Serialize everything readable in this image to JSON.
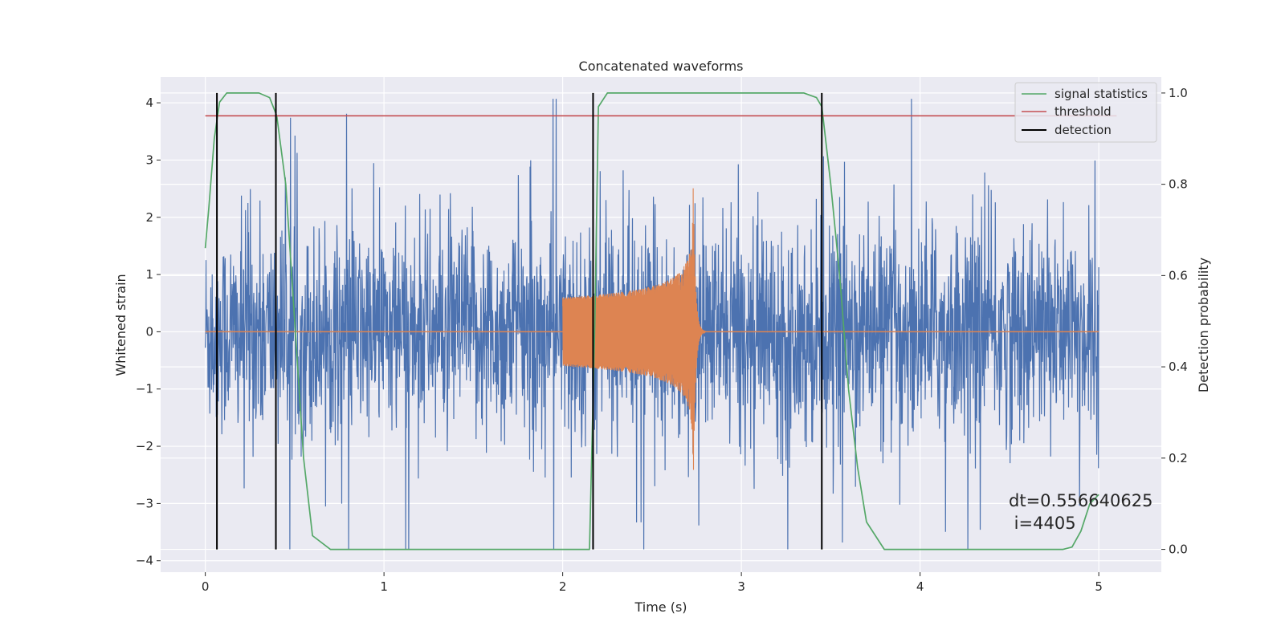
{
  "chart_data": {
    "type": "line",
    "title": "Concatenated waveforms",
    "xlabel": "Time (s)",
    "ylabel": "Whitened strain",
    "y2label": "Detection probability",
    "xlim": [
      -0.25,
      5.35
    ],
    "ylim": [
      -4.2,
      4.45
    ],
    "y2lim": [
      -0.05,
      1.035
    ],
    "x_ticks": [
      0,
      1,
      2,
      3,
      4,
      5
    ],
    "y_ticks": [
      -4,
      -3,
      -2,
      -1,
      0,
      1,
      2,
      3,
      4
    ],
    "y2_ticks": [
      0.0,
      0.2,
      0.4,
      0.6,
      0.8,
      1.0
    ],
    "x_tick_labels": [
      "0",
      "1",
      "2",
      "3",
      "4",
      "5"
    ],
    "y_tick_labels": [
      "−4",
      "−3",
      "−2",
      "−1",
      "0",
      "1",
      "2",
      "3",
      "4"
    ],
    "y2_tick_labels": [
      "0.0",
      "0.2",
      "0.4",
      "0.6",
      "0.8",
      "1.0"
    ],
    "grid": true,
    "legend_position": "top-right",
    "colors": {
      "strain": "#4c72b0",
      "waveform": "#dd8452",
      "signal_statistics": "#55a868",
      "threshold": "#c44e52",
      "detection": "#000000",
      "background": "#eaeaf2",
      "grid": "#ffffff"
    },
    "series": [
      {
        "name": "strain",
        "axis": "left",
        "description_envelope": {
          "x_range": [
            0,
            5
          ],
          "dense_band": [
            -0.9,
            0.9
          ],
          "spike_max": 4.07,
          "spike_min": -3.8
        }
      },
      {
        "name": "waveform",
        "axis": "left",
        "chirp": {
          "start": 2.0,
          "merger": 2.73,
          "ringdown_end": 2.8,
          "amp_start": 0.6,
          "amp_peak": 2.85,
          "amp_min": -2.2
        }
      },
      {
        "name": "signal statistics",
        "axis": "right",
        "x": [
          0.0,
          0.02,
          0.05,
          0.08,
          0.12,
          0.2,
          0.3,
          0.36,
          0.4,
          0.45,
          0.5,
          0.55,
          0.6,
          0.7,
          1.0,
          1.5,
          2.0,
          2.1,
          2.15,
          2.18,
          2.2,
          2.25,
          2.3,
          2.5,
          3.0,
          3.35,
          3.42,
          3.45,
          3.5,
          3.55,
          3.6,
          3.65,
          3.7,
          3.8,
          4.0,
          4.5,
          4.8,
          4.85,
          4.9,
          4.95,
          5.0
        ],
        "y": [
          0.66,
          0.75,
          0.9,
          0.98,
          1.0,
          1.0,
          1.0,
          0.99,
          0.95,
          0.8,
          0.5,
          0.2,
          0.03,
          0.0,
          0.0,
          0.0,
          0.0,
          0.0,
          0.0,
          0.5,
          0.97,
          1.0,
          1.0,
          1.0,
          1.0,
          1.0,
          0.99,
          0.97,
          0.8,
          0.6,
          0.35,
          0.18,
          0.06,
          0.0,
          0.0,
          0.0,
          0.0,
          0.005,
          0.04,
          0.1,
          0.12
        ]
      },
      {
        "name": "threshold",
        "axis": "right",
        "x": [
          0,
          5.1
        ],
        "y": [
          0.95,
          0.95
        ]
      },
      {
        "name": "detection",
        "axis": "right",
        "vlines": [
          0.065,
          0.395,
          2.17,
          3.45
        ],
        "y_range": [
          0.0,
          1.0
        ]
      }
    ],
    "legend": [
      "signal statistics",
      "threshold",
      "detection"
    ],
    "annotation": {
      "line1": "dt=0.556640625",
      "line2": " i=4405",
      "x": 4.5,
      "y": -3.25
    }
  }
}
